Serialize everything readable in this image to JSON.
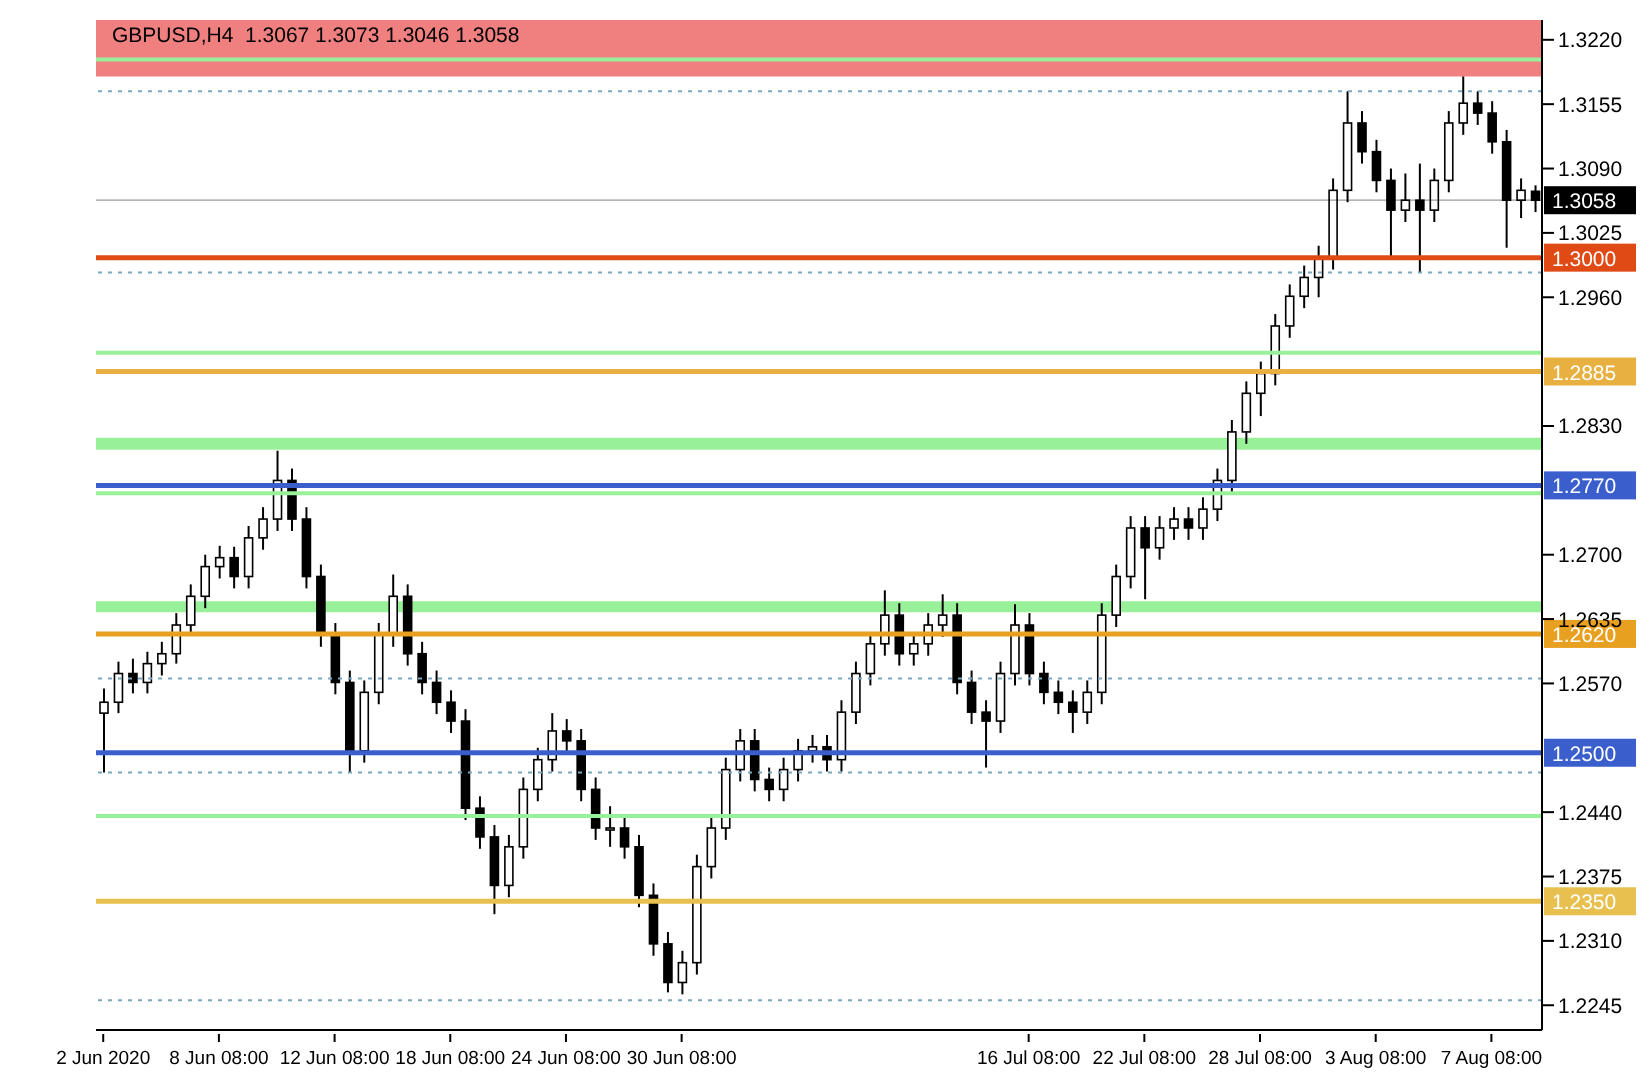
{
  "chart_data": {
    "type": "candlestick",
    "title": "GBPUSD,H4  1.3067 1.3073 1.3046 1.3058",
    "color": "#000000",
    "categories": [
      "2 Jun 2020",
      null,
      null,
      null,
      null,
      null,
      null,
      null,
      "8 Jun 08:00",
      null,
      null,
      null,
      null,
      null,
      null,
      null,
      "12 Jun 08:00",
      null,
      null,
      null,
      null,
      null,
      null,
      null,
      "18 Jun 08:00",
      null,
      null,
      null,
      null,
      null,
      null,
      null,
      "24 Jun 08:00",
      null,
      null,
      null,
      null,
      null,
      null,
      null,
      "30 Jun 08:00",
      null,
      null,
      null,
      null,
      null,
      null,
      null,
      null,
      null,
      null,
      null,
      null,
      null,
      null,
      null,
      null,
      null,
      null,
      null,
      null,
      null,
      null,
      null,
      "16 Jul 08:00",
      null,
      null,
      null,
      null,
      null,
      null,
      null,
      "22 Jul 08:00",
      null,
      null,
      null,
      null,
      null,
      null,
      null,
      "28 Jul 08:00",
      null,
      null,
      null,
      null,
      null,
      null,
      null,
      "3 Aug 08:00",
      null,
      null,
      null,
      null,
      null,
      null,
      null,
      "7 Aug 08:00",
      null,
      null,
      null
    ],
    "ohlc": [
      [
        1.254,
        1.2565,
        1.248,
        1.2551
      ],
      [
        1.2551,
        1.2592,
        1.254,
        1.258
      ],
      [
        1.258,
        1.2595,
        1.256,
        1.2571
      ],
      [
        1.2571,
        1.2602,
        1.256,
        1.259
      ],
      [
        1.259,
        1.2612,
        1.2578,
        1.26
      ],
      [
        1.26,
        1.2641,
        1.259,
        1.2629
      ],
      [
        1.2629,
        1.267,
        1.2618,
        1.2658
      ],
      [
        1.2658,
        1.27,
        1.2646,
        1.2688
      ],
      [
        1.2688,
        1.2709,
        1.2676,
        1.2697
      ],
      [
        1.2697,
        1.2708,
        1.2666,
        1.2678
      ],
      [
        1.2678,
        1.2729,
        1.2666,
        1.2717
      ],
      [
        1.2717,
        1.2748,
        1.2705,
        1.2736
      ],
      [
        1.2736,
        1.2805,
        1.2724,
        1.2775
      ],
      [
        1.2775,
        1.2787,
        1.2724,
        1.2736
      ],
      [
        1.2736,
        1.2748,
        1.2666,
        1.2678
      ],
      [
        1.2678,
        1.269,
        1.2607,
        1.2619
      ],
      [
        1.2619,
        1.2631,
        1.2559,
        1.2571
      ],
      [
        1.2571,
        1.2583,
        1.248,
        1.2502
      ],
      [
        1.2502,
        1.2573,
        1.249,
        1.2561
      ],
      [
        1.2561,
        1.2631,
        1.2549,
        1.2619
      ],
      [
        1.2619,
        1.268,
        1.2607,
        1.2658
      ],
      [
        1.2658,
        1.267,
        1.2588,
        1.26
      ],
      [
        1.26,
        1.2612,
        1.2559,
        1.2571
      ],
      [
        1.2571,
        1.2583,
        1.2539,
        1.2551
      ],
      [
        1.2551,
        1.2563,
        1.252,
        1.2532
      ],
      [
        1.2532,
        1.2544,
        1.2432,
        1.2444
      ],
      [
        1.2444,
        1.2456,
        1.2403,
        1.2415
      ],
      [
        1.2415,
        1.2427,
        1.2337,
        1.2366
      ],
      [
        1.2366,
        1.2417,
        1.2354,
        1.2405
      ],
      [
        1.2405,
        1.2475,
        1.2393,
        1.2463
      ],
      [
        1.2463,
        1.2505,
        1.2451,
        1.2493
      ],
      [
        1.2493,
        1.254,
        1.2481,
        1.2522
      ],
      [
        1.2522,
        1.2534,
        1.25,
        1.2512
      ],
      [
        1.2512,
        1.2524,
        1.2451,
        1.2463
      ],
      [
        1.2463,
        1.2475,
        1.2412,
        1.2424
      ],
      [
        1.2424,
        1.2446,
        1.2405,
        1.2424
      ],
      [
        1.2424,
        1.2436,
        1.2393,
        1.2405
      ],
      [
        1.2405,
        1.2417,
        1.2344,
        1.2356
      ],
      [
        1.2356,
        1.2368,
        1.2295,
        1.2307
      ],
      [
        1.2307,
        1.2319,
        1.2258,
        1.2268
      ],
      [
        1.2268,
        1.23,
        1.2256,
        1.2288
      ],
      [
        1.2288,
        1.2397,
        1.2276,
        1.2385
      ],
      [
        1.2385,
        1.2436,
        1.2373,
        1.2424
      ],
      [
        1.2424,
        1.2495,
        1.2412,
        1.2483
      ],
      [
        1.2483,
        1.2524,
        1.2471,
        1.2512
      ],
      [
        1.2512,
        1.2524,
        1.2461,
        1.2473
      ],
      [
        1.2473,
        1.2485,
        1.2451,
        1.2463
      ],
      [
        1.2463,
        1.2495,
        1.2451,
        1.2483
      ],
      [
        1.2483,
        1.2514,
        1.2471,
        1.2502
      ],
      [
        1.2502,
        1.2518,
        1.249,
        1.2506
      ],
      [
        1.2506,
        1.2518,
        1.2481,
        1.2493
      ],
      [
        1.2493,
        1.2553,
        1.2481,
        1.2541
      ],
      [
        1.2541,
        1.2592,
        1.2529,
        1.258
      ],
      [
        1.258,
        1.2622,
        1.2568,
        1.261
      ],
      [
        1.261,
        1.2664,
        1.2598,
        1.2639
      ],
      [
        1.2639,
        1.2651,
        1.2588,
        1.26
      ],
      [
        1.26,
        1.2622,
        1.2588,
        1.261
      ],
      [
        1.261,
        1.2641,
        1.2598,
        1.2629
      ],
      [
        1.2629,
        1.266,
        1.2617,
        1.2639
      ],
      [
        1.2639,
        1.2651,
        1.2559,
        1.2571
      ],
      [
        1.2571,
        1.2583,
        1.2529,
        1.2541
      ],
      [
        1.2541,
        1.2553,
        1.2485,
        1.2532
      ],
      [
        1.2532,
        1.2592,
        1.252,
        1.258
      ],
      [
        1.258,
        1.265,
        1.2568,
        1.2629
      ],
      [
        1.2629,
        1.2641,
        1.2568,
        1.258
      ],
      [
        1.258,
        1.2592,
        1.2549,
        1.2561
      ],
      [
        1.2561,
        1.2573,
        1.2539,
        1.2551
      ],
      [
        1.2551,
        1.2563,
        1.252,
        1.2541
      ],
      [
        1.2541,
        1.2573,
        1.2529,
        1.2561
      ],
      [
        1.2561,
        1.2651,
        1.2549,
        1.2639
      ],
      [
        1.2639,
        1.269,
        1.2627,
        1.2678
      ],
      [
        1.2678,
        1.2739,
        1.2666,
        1.2727
      ],
      [
        1.2727,
        1.2739,
        1.2655,
        1.2707
      ],
      [
        1.2707,
        1.2739,
        1.2695,
        1.2727
      ],
      [
        1.2727,
        1.2748,
        1.2715,
        1.2736
      ],
      [
        1.2736,
        1.2748,
        1.2715,
        1.2727
      ],
      [
        1.2727,
        1.2758,
        1.2715,
        1.2746
      ],
      [
        1.2746,
        1.2787,
        1.2734,
        1.2775
      ],
      [
        1.2775,
        1.2836,
        1.2763,
        1.2824
      ],
      [
        1.2824,
        1.2875,
        1.2812,
        1.2863
      ],
      [
        1.2863,
        1.2895,
        1.284,
        1.2883
      ],
      [
        1.2883,
        1.2943,
        1.2871,
        1.2931
      ],
      [
        1.2931,
        1.2973,
        1.2919,
        1.2961
      ],
      [
        1.2961,
        1.2992,
        1.2949,
        1.298
      ],
      [
        1.298,
        1.3012,
        1.296,
        1.3
      ],
      [
        1.3,
        1.308,
        1.2988,
        1.3068
      ],
      [
        1.3068,
        1.3168,
        1.3056,
        1.3136
      ],
      [
        1.3136,
        1.3148,
        1.3095,
        1.3107
      ],
      [
        1.3107,
        1.3119,
        1.3066,
        1.3078
      ],
      [
        1.3078,
        1.309,
        1.3,
        1.3048
      ],
      [
        1.3048,
        1.3085,
        1.3036,
        1.3058
      ],
      [
        1.3058,
        1.3095,
        1.2985,
        1.3048
      ],
      [
        1.3048,
        1.309,
        1.3036,
        1.3078
      ],
      [
        1.3078,
        1.3148,
        1.3066,
        1.3136
      ],
      [
        1.3136,
        1.3183,
        1.3124,
        1.3156
      ],
      [
        1.3156,
        1.3168,
        1.3134,
        1.3146
      ],
      [
        1.3146,
        1.3158,
        1.3105,
        1.3117
      ],
      [
        1.3117,
        1.3129,
        1.301,
        1.3058
      ],
      [
        1.3058,
        1.308,
        1.304,
        1.3068
      ],
      [
        1.3067,
        1.3073,
        1.3046,
        1.3058
      ]
    ],
    "ylim": [
      1.222,
      1.324
    ],
    "yticks": [
      {
        "value": 1.322,
        "label": "1.3220"
      },
      1.3155,
      {
        "value": 1.309,
        "label": "1.3090"
      },
      1.3025,
      {
        "value": 1.296,
        "label": "1.2960"
      },
      {
        "value": 1.283,
        "label": "1.2830"
      },
      {
        "value": 1.27,
        "label": "1.2700"
      },
      1.2635,
      {
        "value": 1.257,
        "label": "1.2570"
      },
      {
        "value": 1.244,
        "label": "1.2440"
      },
      1.2375,
      {
        "value": 1.231,
        "label": "1.2310"
      },
      1.2245
    ],
    "grid": false,
    "bands": [
      {
        "axis": "y",
        "from": 1.3183,
        "to": 1.324,
        "color": "#f08080"
      },
      {
        "axis": "y",
        "from": 1.2806,
        "to": 1.2818,
        "color": "#98f098"
      },
      {
        "axis": "y",
        "from": 1.2642,
        "to": 1.2653,
        "color": "#98f098"
      }
    ],
    "ref_lines": [
      {
        "axis": "y",
        "value": 1.32,
        "color": "#98f098"
      },
      {
        "axis": "y",
        "value": 1.2904,
        "color": "#98f098"
      },
      {
        "axis": "y",
        "value": 1.2762,
        "color": "#98f098"
      },
      {
        "axis": "y",
        "value": 1.2436,
        "color": "#98f098"
      },
      {
        "axis": "y",
        "value": 1.3168,
        "color": "#7aa6c0",
        "line_style": "dotted"
      },
      {
        "axis": "y",
        "value": 1.2985,
        "color": "#7aa6c0",
        "line_style": "dotted"
      },
      {
        "axis": "y",
        "value": 1.2575,
        "color": "#7aa6c0",
        "line_style": "dotted"
      },
      {
        "axis": "y",
        "value": 1.248,
        "color": "#7aa6c0",
        "line_style": "dotted"
      },
      {
        "axis": "y",
        "value": 1.225,
        "color": "#7aa6c0",
        "line_style": "dotted"
      },
      {
        "axis": "y",
        "value": 1.3058,
        "label": "1.3058",
        "color": "#000000"
      },
      {
        "axis": "y",
        "value": 1.3,
        "label": "1.3000",
        "color": "#e04a14"
      },
      {
        "axis": "y",
        "value": 1.2885,
        "label": "1.2885",
        "color": "#e8b040"
      },
      {
        "axis": "y",
        "value": 1.277,
        "label": "1.2770",
        "color": "#3a5fcd"
      },
      {
        "axis": "y",
        "value": 1.262,
        "label": "1.2620",
        "color": "#e8a020"
      },
      {
        "axis": "y",
        "value": 1.25,
        "label": "1.2500",
        "color": "#3a5fcd"
      },
      {
        "axis": "y",
        "value": 1.235,
        "label": "1.2350",
        "color": "#e8c050"
      }
    ]
  }
}
